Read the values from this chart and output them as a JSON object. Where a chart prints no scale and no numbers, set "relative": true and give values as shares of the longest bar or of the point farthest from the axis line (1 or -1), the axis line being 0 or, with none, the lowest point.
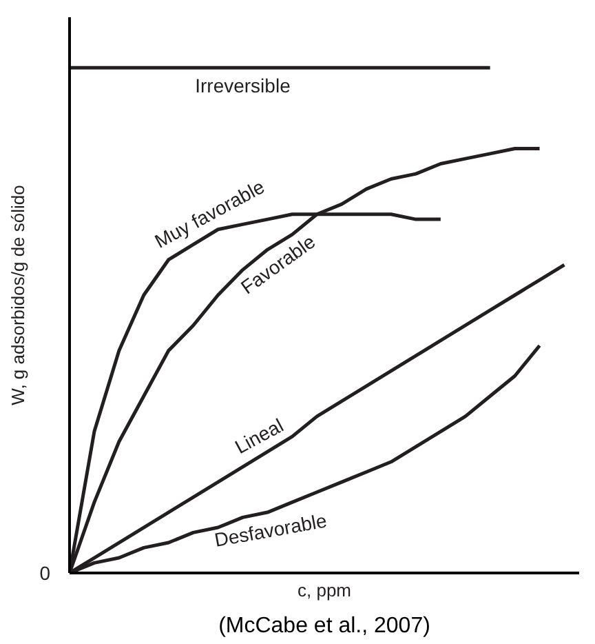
{
  "chart_data": {
    "type": "line",
    "relative": true,
    "xlabel": "c, ppm",
    "ylabel": "W, g adsorbidos/g de sólido",
    "grid": false,
    "legend": false,
    "marker": "none",
    "line_style": "solid",
    "categories": [
      null,
      null,
      null,
      null,
      null,
      null,
      null,
      null,
      null,
      null,
      null,
      null,
      null,
      null,
      null,
      null,
      null,
      null,
      null,
      null,
      null
    ],
    "annotations": [
      "0",
      "(McCabe et al., 2007)"
    ],
    "series": [
      {
        "name": "Irreversible",
        "color": "#231f20",
        "values": [
          1,
          1,
          1,
          1,
          1,
          1,
          1,
          1,
          1,
          1,
          1,
          1,
          1,
          1,
          1,
          1,
          1,
          1,
          null,
          null,
          null
        ]
      },
      {
        "name": "Muy favorable",
        "color": "#231f20",
        "values": [
          0,
          0.28,
          0.44,
          0.55,
          0.62,
          0.65,
          0.68,
          0.69,
          0.7,
          0.71,
          0.71,
          0.71,
          0.71,
          0.71,
          0.7,
          0.7,
          null,
          null,
          null,
          null,
          null
        ]
      },
      {
        "name": "Favorable",
        "color": "#231f20",
        "values": [
          0,
          0.14,
          0.26,
          0.35,
          0.44,
          0.49,
          0.55,
          0.6,
          0.64,
          0.67,
          0.71,
          0.73,
          0.76,
          0.78,
          0.79,
          0.81,
          0.82,
          0.83,
          0.84,
          0.84,
          null
        ]
      },
      {
        "name": "Lineal",
        "color": "#231f20",
        "values": [
          0,
          0.03,
          0.06,
          0.09,
          0.12,
          0.15,
          0.18,
          0.21,
          0.24,
          0.27,
          0.31,
          0.34,
          0.37,
          0.4,
          0.43,
          0.46,
          0.49,
          0.52,
          0.55,
          0.58,
          0.61
        ]
      },
      {
        "name": "Desfavorable",
        "color": "#231f20",
        "values": [
          0,
          0.02,
          0.03,
          0.05,
          0.06,
          0.08,
          0.09,
          0.11,
          0.12,
          0.14,
          0.16,
          0.18,
          0.2,
          0.22,
          0.25,
          0.28,
          0.31,
          0.35,
          0.39,
          0.45,
          null
        ]
      }
    ]
  }
}
